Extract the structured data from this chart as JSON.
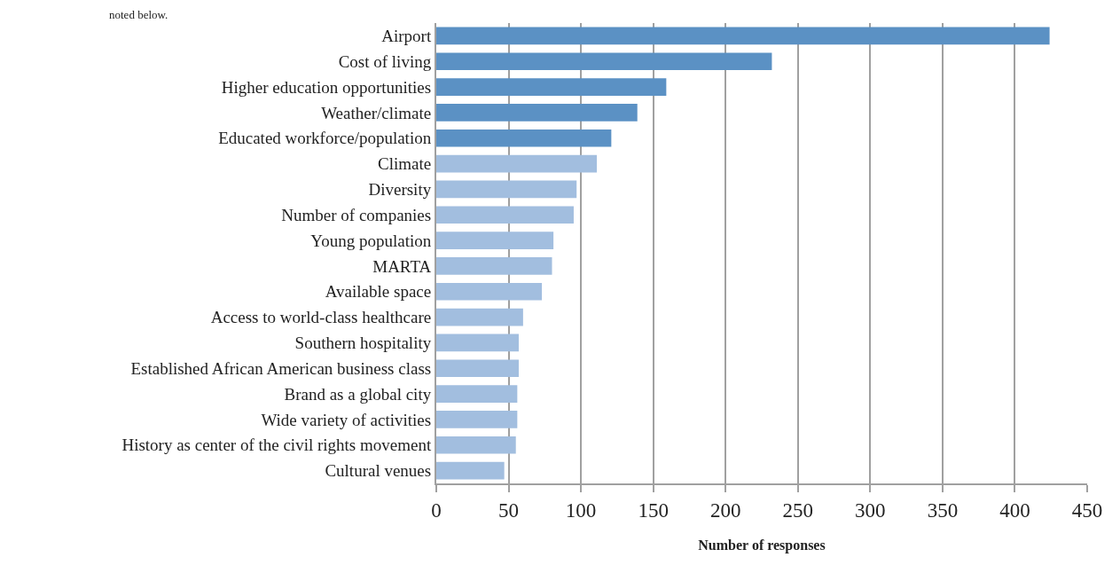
{
  "chart_data": {
    "type": "bar",
    "orientation": "horizontal",
    "xlabel": "Number of responses",
    "annotations": [
      "noted below."
    ],
    "categories": [
      "Airport",
      "Cost of living",
      "Higher education opportunities",
      "Weather/climate",
      "Educated workforce/population",
      "Climate",
      "Diversity",
      "Number of companies",
      "Young population",
      "MARTA",
      "Available space",
      "Access to world-class healthcare",
      "Southern hospitality",
      "Established African American business class",
      "Brand as a global city",
      "Wide variety of activities",
      "History as center of the civil rights movement",
      "Cultural venues"
    ],
    "values": [
      424,
      232,
      159,
      139,
      121,
      111,
      97,
      95,
      81,
      80,
      73,
      60,
      57,
      57,
      56,
      56,
      55,
      47
    ],
    "colors": [
      "#5b91c4",
      "#5b91c4",
      "#5b91c4",
      "#5b91c4",
      "#5b91c4",
      "#a2bedf",
      "#a2bedf",
      "#a2bedf",
      "#a2bedf",
      "#a2bedf",
      "#a2bedf",
      "#a2bedf",
      "#a2bedf",
      "#a2bedf",
      "#a2bedf",
      "#a2bedf",
      "#a2bedf",
      "#a2bedf"
    ],
    "xlim": [
      0,
      450
    ],
    "xticks": [
      0,
      50,
      100,
      150,
      200,
      250,
      300,
      350,
      400,
      450
    ],
    "grid": "x"
  }
}
